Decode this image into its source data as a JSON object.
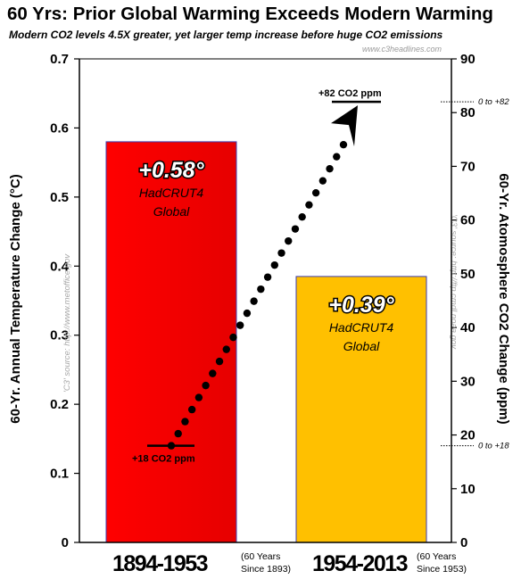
{
  "chart_data": {
    "type": "bar",
    "title": "60 Yrs: Prior Global Warming Exceeds Modern Warming",
    "subtitle": "Modern CO2 levels 4.5X greater, yet larger temp increase before huge CO2 emissions",
    "watermark": "www.c3headlines.com",
    "ylabel": "60-Yr. Annual Temperature Change (°C)",
    "y2label": "60-Yr. Atomosphere CO2 Change (ppm)",
    "ylim": [
      0,
      0.7
    ],
    "yticks": [
      "0",
      "0.1",
      "0.2",
      "0.3",
      "0.4",
      "0.5",
      "0.6",
      "0.7"
    ],
    "y2lim": [
      0,
      90
    ],
    "y2ticks": [
      "0",
      "10",
      "20",
      "30",
      "40",
      "50",
      "60",
      "70",
      "80",
      "90"
    ],
    "categories": [
      "1894-1953",
      "1954-2013"
    ],
    "category_notes": [
      [
        "(60 Years",
        "Since 1893)"
      ],
      [
        "(60 Years",
        "Since 1953)"
      ]
    ],
    "series": [
      {
        "values": [
          0.58,
          0.385
        ],
        "value_labels": [
          "+0.58°",
          "+0.39°"
        ],
        "bar_labels": [
          [
            "HadCRUT4",
            "Global"
          ],
          [
            "HadCRUT4",
            "Global"
          ]
        ],
        "colors": [
          "#ff0000",
          "#ffc000"
        ]
      }
    ],
    "co2_line": {
      "style": "dotted-arrow",
      "start_ppm": 18,
      "end_ppm": 82,
      "start_label": "+18 CO2 ppm",
      "end_label": "+82 CO2 ppm",
      "start_note": "0 to +18",
      "end_note": "0 to +82"
    },
    "sources": [
      "'C3' source: http://www.metoffice.gov",
      "'C3' source: http://ftp.cmdl.noaa.gov"
    ],
    "grid": false,
    "legend": "none"
  }
}
